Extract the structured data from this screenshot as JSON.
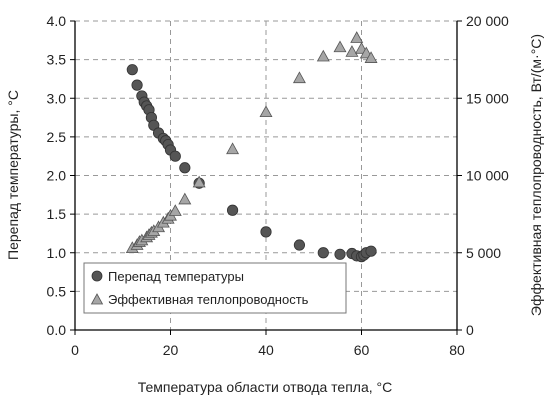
{
  "chart_data": {
    "type": "scatter",
    "title": "",
    "xlabel": "Температура области отвода тепла, °C",
    "ylabel": "Перепад температуры, °C",
    "y2label": "Эффективная теплопроводность, Вт/(м·°C)",
    "xlim": [
      0,
      80
    ],
    "ylim": [
      0,
      4
    ],
    "y2lim": [
      0,
      20000
    ],
    "x_ticks": [
      "0",
      "20",
      "40",
      "60",
      "80"
    ],
    "y_ticks": [
      "0.0",
      "0.5",
      "1.0",
      "1.5",
      "2.0",
      "2.5",
      "3.0",
      "3.5",
      "4.0"
    ],
    "y2_ticks": [
      "0",
      "5 000",
      "10 000",
      "15 000",
      "20 000"
    ],
    "grid": true,
    "legend_position": "bottom-left",
    "colors": {
      "circle_fill": "#555555",
      "triangle_fill": "#a6a6a6",
      "marker_stroke": "#333333",
      "grid": "#999999",
      "axis": "#000000"
    },
    "series": [
      {
        "name": "Перепад температуры",
        "marker": "circle",
        "axis": "left",
        "points": [
          [
            12.0,
            3.37
          ],
          [
            13.0,
            3.17
          ],
          [
            14.0,
            3.03
          ],
          [
            14.5,
            2.95
          ],
          [
            15.0,
            2.9
          ],
          [
            15.5,
            2.85
          ],
          [
            16.0,
            2.75
          ],
          [
            16.5,
            2.65
          ],
          [
            17.5,
            2.55
          ],
          [
            18.5,
            2.48
          ],
          [
            19.0,
            2.45
          ],
          [
            19.5,
            2.4
          ],
          [
            20.0,
            2.33
          ],
          [
            21.0,
            2.25
          ],
          [
            23.0,
            2.1
          ],
          [
            26.0,
            1.9
          ],
          [
            33.0,
            1.55
          ],
          [
            40.0,
            1.27
          ],
          [
            47.0,
            1.1
          ],
          [
            52.0,
            1.0
          ],
          [
            55.5,
            0.98
          ],
          [
            58.0,
            0.99
          ],
          [
            59.0,
            0.96
          ],
          [
            60.0,
            0.95
          ],
          [
            60.5,
            0.97
          ],
          [
            61.0,
            1.0
          ],
          [
            62.0,
            1.02
          ]
        ]
      },
      {
        "name": "Эффективная теплопроводность",
        "marker": "triangle",
        "axis": "right",
        "points": [
          [
            12.0,
            5300
          ],
          [
            13.0,
            5500
          ],
          [
            13.5,
            5700
          ],
          [
            14.0,
            5800
          ],
          [
            15.0,
            6000
          ],
          [
            15.5,
            6150
          ],
          [
            16.0,
            6300
          ],
          [
            16.5,
            6400
          ],
          [
            17.5,
            6650
          ],
          [
            18.5,
            6950
          ],
          [
            19.5,
            7200
          ],
          [
            20.0,
            7400
          ],
          [
            21.0,
            7700
          ],
          [
            23.0,
            8450
          ],
          [
            26.0,
            9550
          ],
          [
            33.0,
            11700
          ],
          [
            40.0,
            14100
          ],
          [
            47.0,
            16300
          ],
          [
            52.0,
            17700
          ],
          [
            55.5,
            18300
          ],
          [
            58.0,
            18000
          ],
          [
            59.0,
            18900
          ],
          [
            60.0,
            18200
          ],
          [
            61.0,
            17900
          ],
          [
            62.0,
            17600
          ]
        ]
      }
    ]
  }
}
